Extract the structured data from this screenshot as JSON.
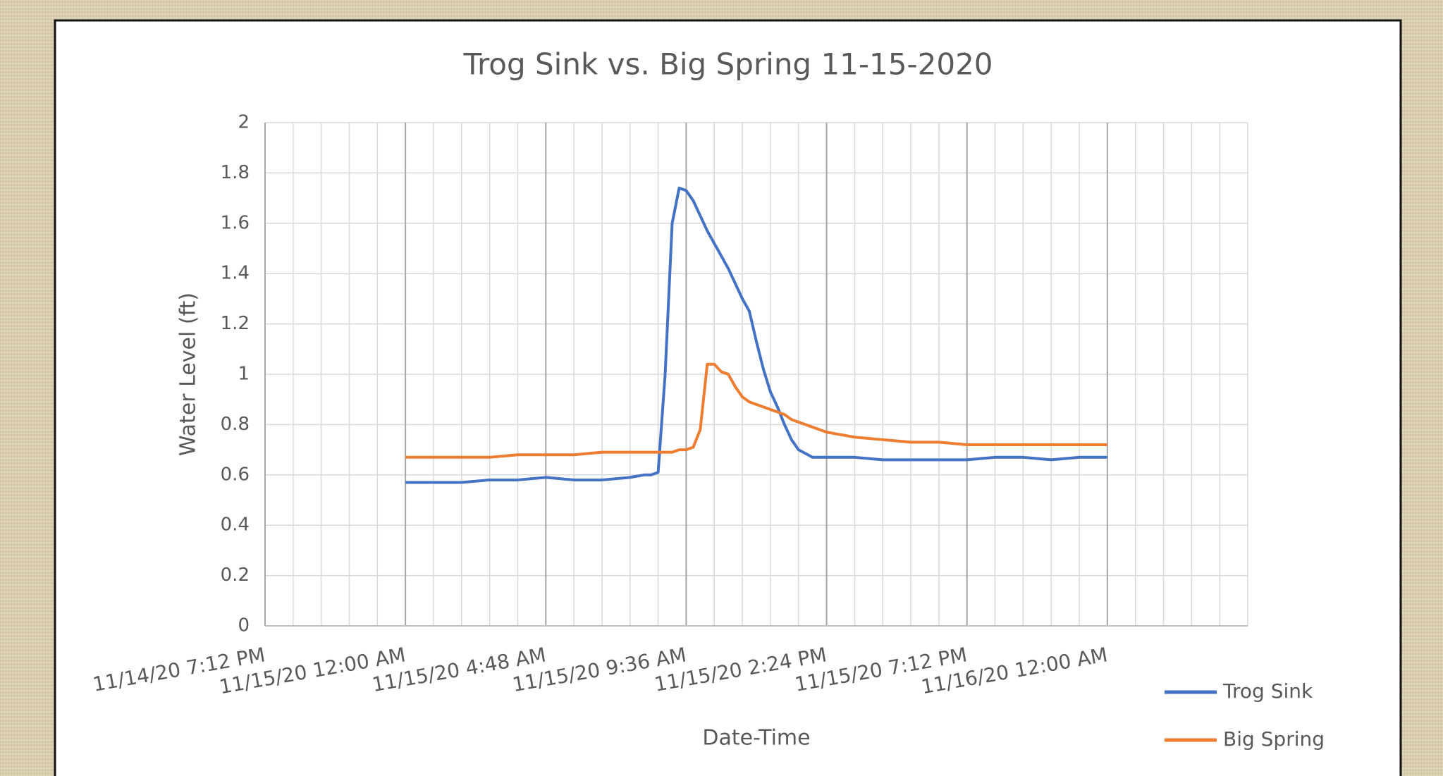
{
  "chart_data": {
    "type": "line",
    "title": "Trog Sink vs. Big Spring 11-15-2020",
    "x_label": "Date-Time",
    "y_label": "Water Level (ft)",
    "x": [
      44150,
      44150.04,
      44150.08,
      44150.12,
      44150.16,
      44150.2,
      44150.24,
      44150.28,
      44150.32,
      44150.34,
      44150.35,
      44150.36,
      44150.37,
      44150.38,
      44150.39,
      44150.4,
      44150.41,
      44150.42,
      44150.43,
      44150.44,
      44150.45,
      44150.46,
      44150.47,
      44150.48,
      44150.49,
      44150.5,
      44150.51,
      44150.52,
      44150.53,
      44150.54,
      44150.55,
      44150.56,
      44150.58,
      44150.6,
      44150.62,
      44150.64,
      44150.68,
      44150.72,
      44150.76,
      44150.8,
      44150.84,
      44150.88,
      44150.92,
      44150.96,
      44151
    ],
    "series": [
      {
        "name": "Trog Sink",
        "color": "#4472c4",
        "values": [
          0.57,
          0.57,
          0.57,
          0.58,
          0.58,
          0.59,
          0.58,
          0.58,
          0.59,
          0.6,
          0.6,
          0.61,
          1.0,
          1.6,
          1.74,
          1.73,
          1.69,
          1.63,
          1.57,
          1.52,
          1.47,
          1.42,
          1.36,
          1.3,
          1.25,
          1.13,
          1.02,
          0.93,
          0.87,
          0.8,
          0.74,
          0.7,
          0.67,
          0.67,
          0.67,
          0.67,
          0.66,
          0.66,
          0.66,
          0.66,
          0.67,
          0.67,
          0.66,
          0.67,
          0.67
        ]
      },
      {
        "name": "Big Spring",
        "color": "#ed7d31",
        "values": [
          0.67,
          0.67,
          0.67,
          0.67,
          0.68,
          0.68,
          0.68,
          0.69,
          0.69,
          0.69,
          0.69,
          0.69,
          0.69,
          0.69,
          0.7,
          0.7,
          0.71,
          0.78,
          1.04,
          1.04,
          1.01,
          1.0,
          0.95,
          0.91,
          0.89,
          0.88,
          0.87,
          0.86,
          0.85,
          0.84,
          0.82,
          0.81,
          0.79,
          0.77,
          0.76,
          0.75,
          0.74,
          0.73,
          0.73,
          0.72,
          0.72,
          0.72,
          0.72,
          0.72,
          0.72
        ]
      }
    ],
    "xlim": [
      44149.8,
      44151.2
    ],
    "xticks": [
      {
        "value": 44149.8,
        "label": "11/14/20 7:12 PM"
      },
      {
        "value": 44150,
        "label": "11/15/20 12:00 AM"
      },
      {
        "value": 44150.2,
        "label": "11/15/20 4:48 AM"
      },
      {
        "value": 44150.4,
        "label": "11/15/20 9:36 AM"
      },
      {
        "value": 44150.6,
        "label": "11/15/20 2:24 PM"
      },
      {
        "value": 44150.8,
        "label": "11/15/20 7:12 PM"
      },
      {
        "value": 44151,
        "label": "11/16/20 12:00 AM"
      }
    ],
    "x_minor_divisions": 5,
    "ylim": [
      0,
      2
    ],
    "yticks": [
      0,
      0.2,
      0.4,
      0.6,
      0.8,
      1,
      1.2,
      1.4,
      1.6,
      1.8,
      2
    ],
    "grid": true,
    "legend": "lower right"
  }
}
